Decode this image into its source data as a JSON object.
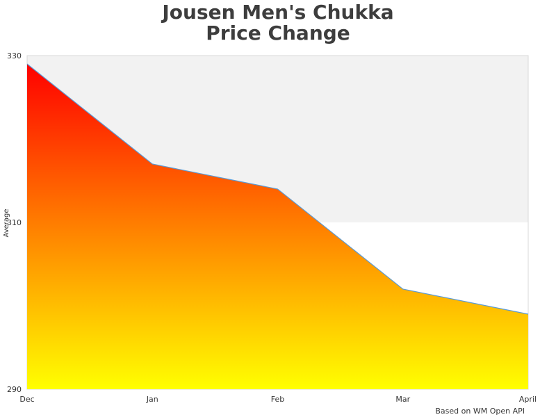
{
  "chart_data": {
    "type": "area",
    "title_lines": [
      "Jousen Men's Chukka",
      "Price Change"
    ],
    "ylabel": "Average",
    "xlabel": "",
    "categories": [
      "Dec",
      "Jan",
      "Feb",
      "Mar",
      "April"
    ],
    "series": [
      {
        "values": [
          329,
          317,
          314,
          302,
          299
        ]
      }
    ],
    "ylim": [
      290,
      330
    ],
    "yticks": [
      290,
      310,
      330
    ],
    "plot_bands": [
      {
        "from": 310,
        "to": 330,
        "color": "#f2f2f2"
      }
    ],
    "fill_gradient": {
      "top": "#ff0000",
      "bottom": "#ffff00"
    },
    "line_color": "#5b9bd5",
    "grid": false,
    "credit": "Based on WM Open API"
  }
}
